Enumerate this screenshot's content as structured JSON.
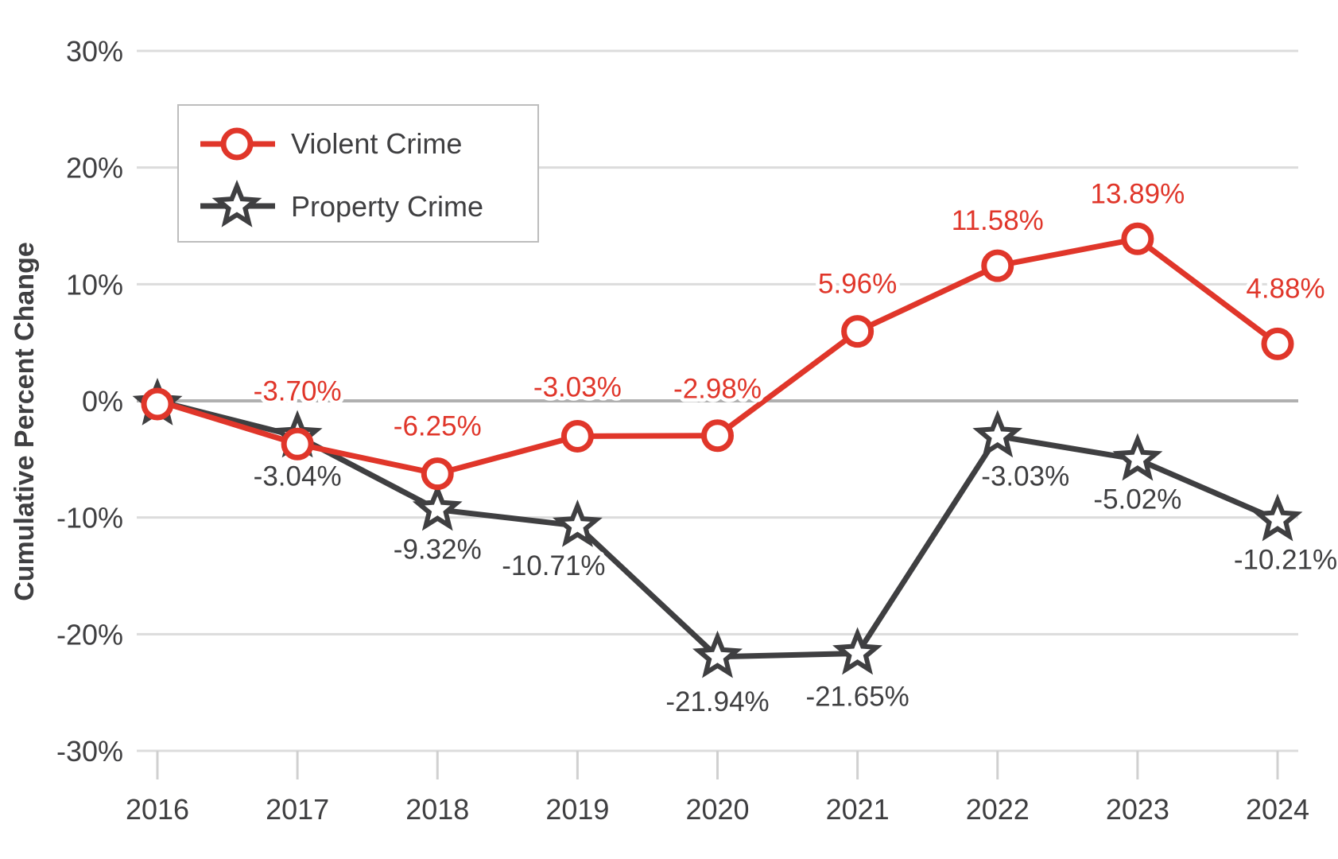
{
  "chart_data": {
    "type": "line",
    "title": "",
    "xlabel": "",
    "ylabel": "Cumulative Percent Change",
    "categories": [
      "2016",
      "2017",
      "2018",
      "2019",
      "2020",
      "2021",
      "2022",
      "2023",
      "2024"
    ],
    "ylim": [
      -30,
      30
    ],
    "yticks": [
      30,
      20,
      10,
      0,
      -10,
      -20,
      -30
    ],
    "ytick_labels": [
      "30%",
      "20%",
      "10%",
      "0%",
      "-10%",
      "-20%",
      "-30%"
    ],
    "grid": true,
    "legend": "top-left",
    "series": [
      {
        "name": "Violent Crime",
        "color": "#e0362a",
        "marker": "circle",
        "values": [
          0,
          -3.7,
          -6.25,
          -3.03,
          -2.98,
          5.96,
          11.58,
          13.89,
          4.88
        ],
        "labels": [
          "",
          "-3.70%",
          "-6.25%",
          "-3.03%",
          "-2.98%",
          "5.96%",
          "11.58%",
          "13.89%",
          "4.88%"
        ]
      },
      {
        "name": "Property Crime",
        "color": "#3f3f41",
        "marker": "star",
        "values": [
          0,
          -3.04,
          -9.32,
          -10.71,
          -21.94,
          -21.65,
          -3.03,
          -5.02,
          -10.21
        ],
        "labels": [
          "",
          "-3.04%",
          "-9.32%",
          "-10.71%",
          "-21.94%",
          "-21.65%",
          "-3.03%",
          "-5.02%",
          "-10.21%"
        ]
      }
    ]
  }
}
